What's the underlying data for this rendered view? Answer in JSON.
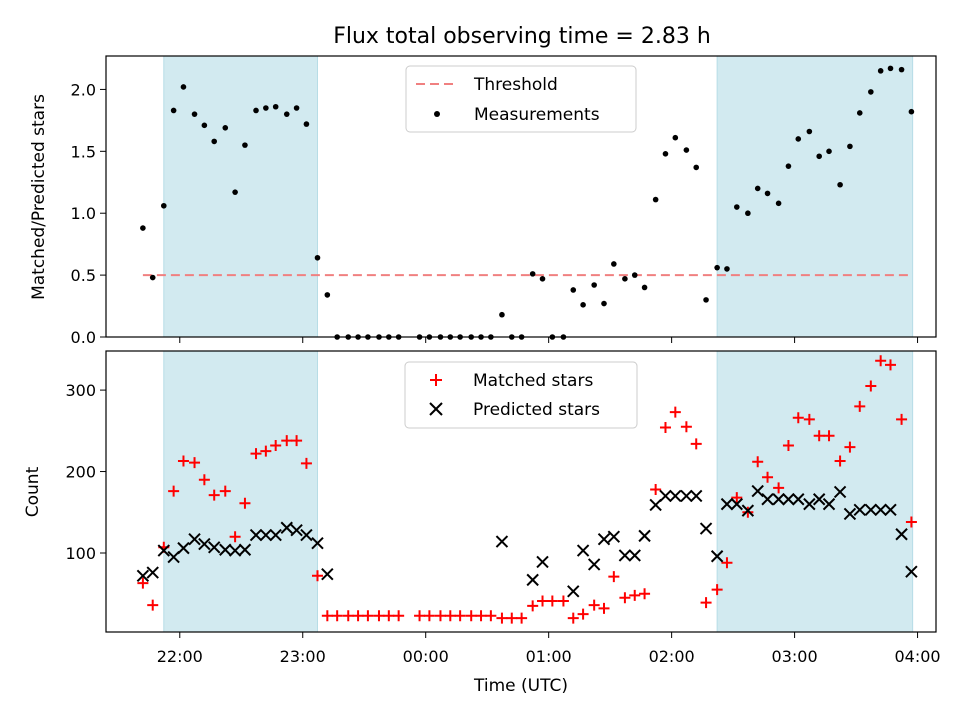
{
  "chart_data": {
    "title": "Flux total observing time = 2.83 h",
    "xlabel": "Time (UTC)",
    "x_unit": "hours since 00:00 UTC",
    "xlim": [
      -2.6,
      4.15
    ],
    "x_ticks": [
      {
        "value": -2,
        "label": "22:00"
      },
      {
        "value": -1,
        "label": "23:00"
      },
      {
        "value": 0,
        "label": "00:00"
      },
      {
        "value": 1,
        "label": "01:00"
      },
      {
        "value": 2,
        "label": "02:00"
      },
      {
        "value": 3,
        "label": "03:00"
      },
      {
        "value": 4,
        "label": "04:00"
      }
    ],
    "shaded_intervals": [
      [
        -2.13,
        -0.88
      ],
      [
        2.37,
        3.96
      ]
    ],
    "shade_color": "#d2eaf0",
    "panels": [
      {
        "id": "ratio",
        "type": "scatter",
        "ylabel": "Matched/Predicted stars",
        "ylim": [
          0,
          2.27
        ],
        "y_ticks": [
          0.0,
          0.5,
          1.0,
          1.5,
          2.0
        ],
        "y_tick_labels": [
          "0.0",
          "0.5",
          "1.0",
          "1.5",
          "2.0"
        ],
        "legend": {
          "placement": "upper-center",
          "entries": [
            "Threshold",
            "Measurements"
          ]
        },
        "threshold": {
          "name": "Threshold",
          "value": 0.5,
          "x_range": [
            -2.3,
            3.96
          ],
          "color": "#f08080"
        },
        "series": [
          {
            "name": "Measurements",
            "color": "#000000",
            "marker": "dot",
            "points": [
              [
                -2.3,
                0.88
              ],
              [
                -2.22,
                0.48
              ],
              [
                -2.13,
                1.06
              ],
              [
                -2.05,
                1.83
              ],
              [
                -1.97,
                2.02
              ],
              [
                -1.88,
                1.8
              ],
              [
                -1.8,
                1.71
              ],
              [
                -1.72,
                1.58
              ],
              [
                -1.63,
                1.69
              ],
              [
                -1.55,
                1.17
              ],
              [
                -1.47,
                1.55
              ],
              [
                -1.38,
                1.83
              ],
              [
                -1.3,
                1.85
              ],
              [
                -1.22,
                1.86
              ],
              [
                -1.13,
                1.8
              ],
              [
                -1.05,
                1.85
              ],
              [
                -0.97,
                1.72
              ],
              [
                -0.88,
                0.64
              ],
              [
                -0.8,
                0.34
              ],
              [
                -0.72,
                0
              ],
              [
                -0.63,
                0
              ],
              [
                -0.55,
                0
              ],
              [
                -0.47,
                0
              ],
              [
                -0.38,
                0
              ],
              [
                -0.3,
                0
              ],
              [
                -0.22,
                0
              ],
              [
                -0.05,
                0
              ],
              [
                0.03,
                0
              ],
              [
                0.12,
                0
              ],
              [
                0.2,
                0
              ],
              [
                0.28,
                0
              ],
              [
                0.37,
                0
              ],
              [
                0.45,
                0
              ],
              [
                0.53,
                0
              ],
              [
                0.62,
                0.18
              ],
              [
                0.7,
                0
              ],
              [
                0.78,
                0
              ],
              [
                0.87,
                0.51
              ],
              [
                0.95,
                0.47
              ],
              [
                1.03,
                0
              ],
              [
                1.12,
                0
              ],
              [
                1.2,
                0.38
              ],
              [
                1.28,
                0.26
              ],
              [
                1.37,
                0.42
              ],
              [
                1.45,
                0.27
              ],
              [
                1.53,
                0.59
              ],
              [
                1.62,
                0.47
              ],
              [
                1.7,
                0.5
              ],
              [
                1.78,
                0.4
              ],
              [
                1.87,
                1.11
              ],
              [
                1.95,
                1.48
              ],
              [
                2.03,
                1.61
              ],
              [
                2.12,
                1.51
              ],
              [
                2.2,
                1.37
              ],
              [
                2.28,
                0.3
              ],
              [
                2.37,
                0.56
              ],
              [
                2.45,
                0.55
              ],
              [
                2.53,
                1.05
              ],
              [
                2.62,
                1.0
              ],
              [
                2.7,
                1.2
              ],
              [
                2.78,
                1.16
              ],
              [
                2.87,
                1.08
              ],
              [
                2.95,
                1.38
              ],
              [
                3.03,
                1.6
              ],
              [
                3.12,
                1.66
              ],
              [
                3.2,
                1.46
              ],
              [
                3.28,
                1.5
              ],
              [
                3.37,
                1.23
              ],
              [
                3.45,
                1.54
              ],
              [
                3.53,
                1.81
              ],
              [
                3.62,
                1.98
              ],
              [
                3.7,
                2.15
              ],
              [
                3.78,
                2.17
              ],
              [
                3.87,
                2.16
              ],
              [
                3.95,
                1.82
              ]
            ]
          }
        ]
      },
      {
        "id": "counts",
        "type": "scatter",
        "ylabel": "Count",
        "ylim": [
          3,
          348
        ],
        "y_ticks": [
          100,
          200,
          300
        ],
        "y_tick_labels": [
          "100",
          "200",
          "300"
        ],
        "legend": {
          "placement": "upper-center",
          "entries": [
            "Matched stars",
            "Predicted stars"
          ]
        },
        "series": [
          {
            "name": "Matched stars",
            "color": "#ff0000",
            "marker": "plus",
            "points": [
              [
                -2.3,
                63
              ],
              [
                -2.22,
                36
              ],
              [
                -2.13,
                107
              ],
              [
                -2.05,
                176
              ],
              [
                -1.97,
                213
              ],
              [
                -1.88,
                211
              ],
              [
                -1.8,
                190
              ],
              [
                -1.72,
                171
              ],
              [
                -1.63,
                176
              ],
              [
                -1.55,
                120
              ],
              [
                -1.47,
                161
              ],
              [
                -1.38,
                222
              ],
              [
                -1.3,
                225
              ],
              [
                -1.22,
                232
              ],
              [
                -1.13,
                238
              ],
              [
                -1.05,
                238
              ],
              [
                -0.97,
                210
              ],
              [
                -0.88,
                72
              ],
              [
                -0.8,
                23
              ],
              [
                -0.72,
                23
              ],
              [
                -0.63,
                23
              ],
              [
                -0.55,
                23
              ],
              [
                -0.47,
                23
              ],
              [
                -0.38,
                23
              ],
              [
                -0.3,
                23
              ],
              [
                -0.22,
                23
              ],
              [
                -0.05,
                23
              ],
              [
                0.03,
                23
              ],
              [
                0.12,
                23
              ],
              [
                0.2,
                23
              ],
              [
                0.28,
                23
              ],
              [
                0.37,
                23
              ],
              [
                0.45,
                23
              ],
              [
                0.53,
                23
              ],
              [
                0.62,
                20
              ],
              [
                0.7,
                20
              ],
              [
                0.78,
                20
              ],
              [
                0.87,
                35
              ],
              [
                0.95,
                41
              ],
              [
                1.03,
                41
              ],
              [
                1.12,
                41
              ],
              [
                1.2,
                20
              ],
              [
                1.28,
                25
              ],
              [
                1.37,
                36
              ],
              [
                1.45,
                32
              ],
              [
                1.53,
                71
              ],
              [
                1.62,
                45
              ],
              [
                1.7,
                48
              ],
              [
                1.78,
                50
              ],
              [
                1.87,
                178
              ],
              [
                1.95,
                254
              ],
              [
                2.03,
                273
              ],
              [
                2.12,
                255
              ],
              [
                2.2,
                234
              ],
              [
                2.28,
                39
              ],
              [
                2.37,
                55
              ],
              [
                2.45,
                88
              ],
              [
                2.53,
                168
              ],
              [
                2.62,
                150
              ],
              [
                2.7,
                212
              ],
              [
                2.78,
                193
              ],
              [
                2.87,
                180
              ],
              [
                2.95,
                232
              ],
              [
                3.03,
                266
              ],
              [
                3.12,
                264
              ],
              [
                3.2,
                244
              ],
              [
                3.28,
                244
              ],
              [
                3.37,
                213
              ],
              [
                3.45,
                230
              ],
              [
                3.53,
                280
              ],
              [
                3.62,
                305
              ],
              [
                3.7,
                336
              ],
              [
                3.78,
                331
              ],
              [
                3.87,
                264
              ],
              [
                3.95,
                138
              ]
            ]
          },
          {
            "name": "Predicted stars",
            "color": "#000000",
            "marker": "x",
            "points": [
              [
                -2.3,
                72
              ],
              [
                -2.22,
                76
              ],
              [
                -2.13,
                103
              ],
              [
                -2.05,
                95
              ],
              [
                -1.97,
                106
              ],
              [
                -1.88,
                117
              ],
              [
                -1.8,
                111
              ],
              [
                -1.72,
                107
              ],
              [
                -1.63,
                104
              ],
              [
                -1.55,
                103
              ],
              [
                -1.47,
                104
              ],
              [
                -1.38,
                122
              ],
              [
                -1.3,
                122
              ],
              [
                -1.22,
                122
              ],
              [
                -1.13,
                131
              ],
              [
                -1.05,
                128
              ],
              [
                -0.97,
                122
              ],
              [
                -0.88,
                112
              ],
              [
                -0.8,
                74
              ],
              [
                0.62,
                114
              ],
              [
                0.87,
                67
              ],
              [
                0.95,
                89
              ],
              [
                1.2,
                53
              ],
              [
                1.28,
                103
              ],
              [
                1.37,
                86
              ],
              [
                1.45,
                117
              ],
              [
                1.53,
                120
              ],
              [
                1.62,
                97
              ],
              [
                1.7,
                97
              ],
              [
                1.78,
                121
              ],
              [
                1.87,
                159
              ],
              [
                1.95,
                170
              ],
              [
                2.03,
                170
              ],
              [
                2.12,
                170
              ],
              [
                2.2,
                170
              ],
              [
                2.28,
                130
              ],
              [
                2.37,
                96
              ],
              [
                2.45,
                160
              ],
              [
                2.53,
                160
              ],
              [
                2.62,
                152
              ],
              [
                2.7,
                176
              ],
              [
                2.78,
                166
              ],
              [
                2.87,
                166
              ],
              [
                2.95,
                166
              ],
              [
                3.03,
                166
              ],
              [
                3.12,
                160
              ],
              [
                3.2,
                166
              ],
              [
                3.28,
                160
              ],
              [
                3.37,
                175
              ],
              [
                3.45,
                148
              ],
              [
                3.53,
                153
              ],
              [
                3.62,
                153
              ],
              [
                3.7,
                153
              ],
              [
                3.78,
                153
              ],
              [
                3.87,
                123
              ],
              [
                3.95,
                77
              ]
            ]
          }
        ]
      }
    ]
  }
}
